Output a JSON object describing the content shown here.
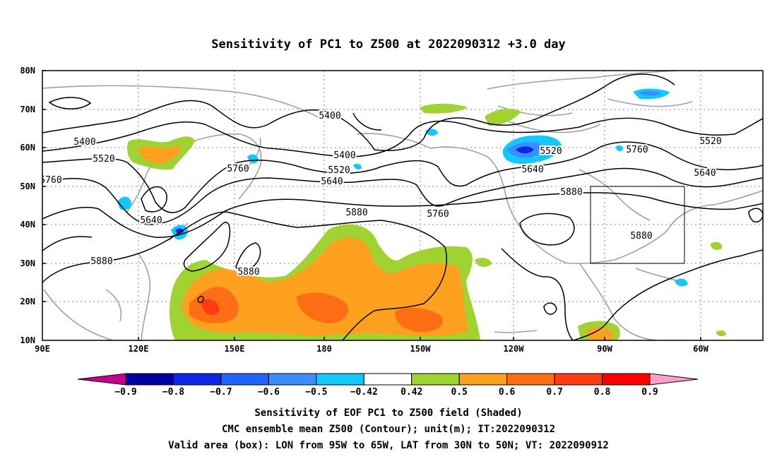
{
  "title": "Sensitivity of PC1 to Z500 at 2022090312 +3.0 day",
  "lat_ticks": [
    "80N",
    "70N",
    "60N",
    "50N",
    "40N",
    "30N",
    "20N",
    "10N"
  ],
  "lon_ticks": [
    "90E",
    "120E",
    "150E",
    "180",
    "150W",
    "120W",
    "90W",
    "60W"
  ],
  "colorbar": {
    "labels": [
      "-0.9",
      "-0.8",
      "-0.7",
      "-0.6",
      "-0.5",
      "-0.42",
      "0.42",
      "0.5",
      "0.6",
      "0.7",
      "0.8",
      "0.9"
    ],
    "colors": [
      "#c8008c",
      "#0000a0",
      "#0a28e6",
      "#1e64ff",
      "#3c8cff",
      "#14c8ff",
      "#ffffff",
      "#a0d232",
      "#ffa01e",
      "#ff6e14",
      "#ff3c14",
      "#ff0000",
      "#ffa0c8"
    ]
  },
  "contour_labels": [
    "5400",
    "5400",
    "5400",
    "5520",
    "5520",
    "5520",
    "5520",
    "5640",
    "5640",
    "5640",
    "5640",
    "5760",
    "5760",
    "5760",
    "5760",
    "5880",
    "5880",
    "5880",
    "5880",
    "5880"
  ],
  "captions": [
    "Sensitivity of EOF PC1 to Z500 field (Shaded)",
    "CMC ensemble mean Z500 (Contour); unit(m); IT:2022090312",
    "Valid area (box): LON from 95W to 65W, LAT from 30N to 50N; VT: 2022090912"
  ],
  "valid_box": {
    "lon_west": -95,
    "lon_east": -65,
    "lat_south": 30,
    "lat_north": 50
  },
  "colors": {
    "land_outline": "#a0a0a0",
    "contour": "#000000",
    "grid": "#b4b4b4"
  }
}
